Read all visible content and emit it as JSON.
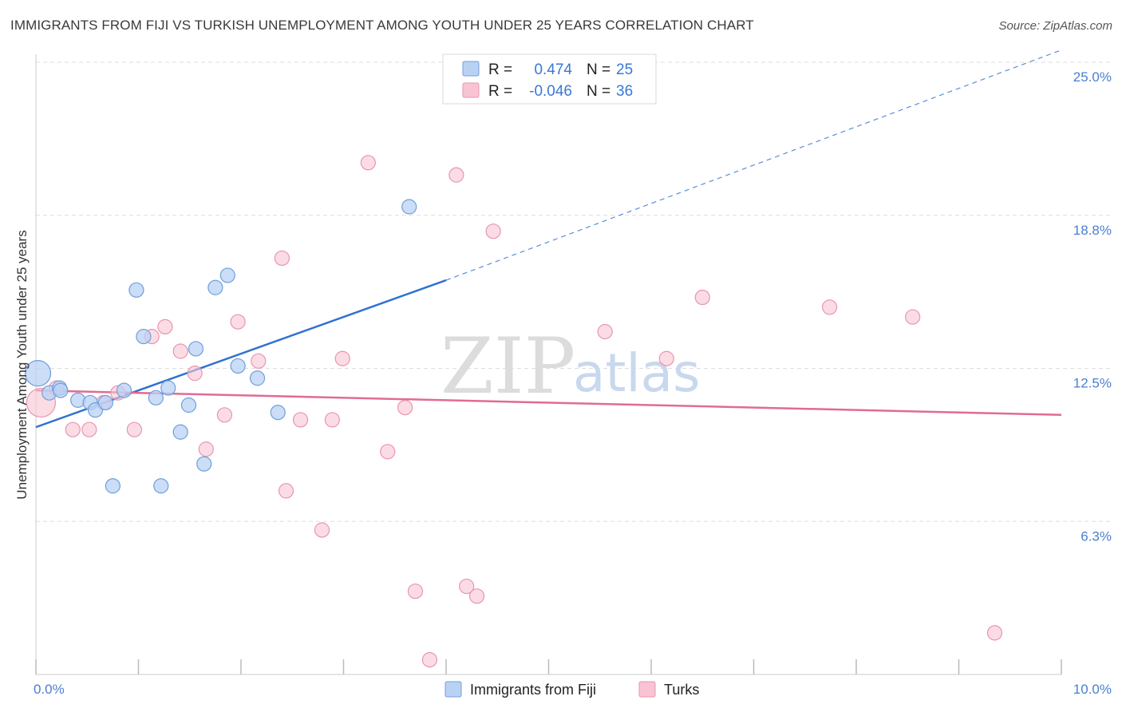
{
  "title": "IMMIGRANTS FROM FIJI VS TURKISH UNEMPLOYMENT AMONG YOUTH UNDER 25 YEARS CORRELATION CHART",
  "source": "Source: ZipAtlas.com",
  "watermark": {
    "zip": "ZIP",
    "atlas": "atlas"
  },
  "legend": {
    "fiji": {
      "r_label": "R =",
      "r_value": "0.474",
      "n_label": "N =",
      "n_value": "25"
    },
    "turks": {
      "r_label": "R =",
      "r_value": "-0.046",
      "n_label": "N =",
      "n_value": "36"
    }
  },
  "bottom_legend": {
    "fiji": "Immigrants from Fiji",
    "turks": "Turks"
  },
  "colors": {
    "fiji_fill": "#b9d2f4",
    "fiji_stroke": "#6f9fdc",
    "fiji_line": "#2f72d0",
    "turks_fill": "#f8c4d3",
    "turks_stroke": "#e895b0",
    "turks_line": "#e06b96",
    "grid": "#dddddd",
    "tick_text": "#4a7fd0"
  },
  "chart_data": {
    "type": "scatter",
    "title": "IMMIGRANTS FROM FIJI VS TURKISH UNEMPLOYMENT AMONG YOUTH UNDER 25 YEARS CORRELATION CHART",
    "xlabel": "",
    "ylabel": "Unemployment Among Youth under 25 years",
    "xlim": [
      0,
      10
    ],
    "ylim": [
      0,
      25
    ],
    "x_tick_labels": [
      "0.0%",
      "10.0%"
    ],
    "y_ticks": [
      6.25,
      12.5,
      18.75,
      25
    ],
    "y_tick_labels": [
      "6.3%",
      "12.5%",
      "18.8%",
      "25.0%"
    ],
    "series": [
      {
        "name": "Immigrants from Fiji",
        "points": [
          {
            "x": 0.02,
            "y": 12.3,
            "s": 16
          },
          {
            "x": 0.13,
            "y": 11.5,
            "s": 9
          },
          {
            "x": 0.23,
            "y": 11.7,
            "s": 9
          },
          {
            "x": 0.41,
            "y": 11.2,
            "s": 9
          },
          {
            "x": 0.53,
            "y": 11.1,
            "s": 9
          },
          {
            "x": 0.58,
            "y": 10.8,
            "s": 9
          },
          {
            "x": 0.68,
            "y": 11.1,
            "s": 9
          },
          {
            "x": 0.75,
            "y": 7.7,
            "s": 9
          },
          {
            "x": 0.86,
            "y": 11.6,
            "s": 9
          },
          {
            "x": 0.98,
            "y": 15.7,
            "s": 9
          },
          {
            "x": 1.05,
            "y": 13.8,
            "s": 9
          },
          {
            "x": 1.17,
            "y": 11.3,
            "s": 9
          },
          {
            "x": 1.22,
            "y": 7.7,
            "s": 9
          },
          {
            "x": 1.29,
            "y": 11.7,
            "s": 9
          },
          {
            "x": 1.41,
            "y": 9.9,
            "s": 9
          },
          {
            "x": 1.49,
            "y": 11.0,
            "s": 9
          },
          {
            "x": 1.56,
            "y": 13.3,
            "s": 9
          },
          {
            "x": 1.64,
            "y": 8.6,
            "s": 9
          },
          {
            "x": 1.75,
            "y": 15.8,
            "s": 9
          },
          {
            "x": 1.87,
            "y": 16.3,
            "s": 9
          },
          {
            "x": 1.97,
            "y": 12.6,
            "s": 9
          },
          {
            "x": 2.16,
            "y": 12.1,
            "s": 9
          },
          {
            "x": 2.36,
            "y": 10.7,
            "s": 9
          },
          {
            "x": 3.64,
            "y": 19.1,
            "s": 9
          },
          {
            "x": 0.24,
            "y": 11.6,
            "s": 9
          }
        ],
        "trend": {
          "x_start": 0,
          "y_start": 10.1,
          "x_solid_end": 4.0,
          "y_solid_end": 16.1,
          "x_dash_end": 10.0,
          "y_dash_end": 25.5
        }
      },
      {
        "name": "Turks",
        "points": [
          {
            "x": 0.05,
            "y": 11.1,
            "s": 18
          },
          {
            "x": 0.2,
            "y": 11.7,
            "s": 9
          },
          {
            "x": 0.36,
            "y": 10.0,
            "s": 9
          },
          {
            "x": 0.52,
            "y": 10.0,
            "s": 9
          },
          {
            "x": 0.66,
            "y": 11.1,
            "s": 9
          },
          {
            "x": 0.8,
            "y": 11.5,
            "s": 9
          },
          {
            "x": 0.96,
            "y": 10.0,
            "s": 9
          },
          {
            "x": 1.13,
            "y": 13.8,
            "s": 9
          },
          {
            "x": 1.26,
            "y": 14.2,
            "s": 9
          },
          {
            "x": 1.41,
            "y": 13.2,
            "s": 9
          },
          {
            "x": 1.55,
            "y": 12.3,
            "s": 9
          },
          {
            "x": 1.66,
            "y": 9.2,
            "s": 9
          },
          {
            "x": 1.84,
            "y": 10.6,
            "s": 9
          },
          {
            "x": 1.97,
            "y": 14.4,
            "s": 9
          },
          {
            "x": 2.17,
            "y": 12.8,
            "s": 9
          },
          {
            "x": 2.4,
            "y": 17.0,
            "s": 9
          },
          {
            "x": 2.44,
            "y": 7.5,
            "s": 9
          },
          {
            "x": 2.58,
            "y": 10.4,
            "s": 9
          },
          {
            "x": 2.79,
            "y": 5.9,
            "s": 9
          },
          {
            "x": 2.89,
            "y": 10.4,
            "s": 9
          },
          {
            "x": 2.99,
            "y": 12.9,
            "s": 9
          },
          {
            "x": 3.24,
            "y": 20.9,
            "s": 9
          },
          {
            "x": 3.43,
            "y": 9.1,
            "s": 9
          },
          {
            "x": 3.6,
            "y": 10.9,
            "s": 9
          },
          {
            "x": 3.7,
            "y": 3.4,
            "s": 9
          },
          {
            "x": 3.84,
            "y": 0.6,
            "s": 9
          },
          {
            "x": 4.1,
            "y": 20.4,
            "s": 9
          },
          {
            "x": 4.2,
            "y": 3.6,
            "s": 9
          },
          {
            "x": 4.3,
            "y": 3.2,
            "s": 9
          },
          {
            "x": 4.46,
            "y": 18.1,
            "s": 9
          },
          {
            "x": 5.55,
            "y": 14.0,
            "s": 9
          },
          {
            "x": 6.15,
            "y": 12.9,
            "s": 9
          },
          {
            "x": 6.5,
            "y": 15.4,
            "s": 9
          },
          {
            "x": 7.74,
            "y": 15.0,
            "s": 9
          },
          {
            "x": 8.55,
            "y": 14.6,
            "s": 9
          },
          {
            "x": 9.35,
            "y": 1.7,
            "s": 9
          }
        ],
        "trend": {
          "x_start": 0,
          "y_start": 11.6,
          "x_end": 10.0,
          "y_end": 10.6
        }
      }
    ],
    "legend_position": "top-center",
    "grid": true
  }
}
